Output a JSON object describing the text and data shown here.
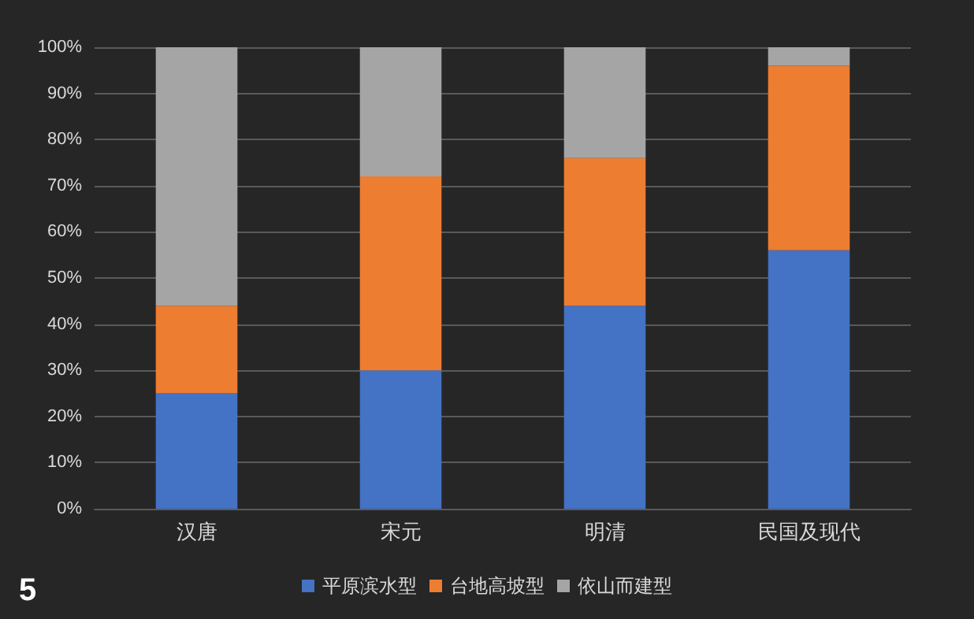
{
  "chart_data": {
    "type": "bar",
    "stacked": true,
    "categories": [
      "汉唐",
      "宋元",
      "明清",
      "民国及现代"
    ],
    "series": [
      {
        "name": "平原滨水型",
        "color": "#4472c4",
        "values": [
          25,
          30,
          44,
          56
        ]
      },
      {
        "name": "台地高坡型",
        "color": "#ed7d31",
        "values": [
          19,
          42,
          32,
          40
        ]
      },
      {
        "name": "依山而建型",
        "color": "#a5a5a5",
        "values": [
          56,
          28,
          24,
          4
        ]
      }
    ],
    "ylim": [
      0,
      100
    ],
    "yticks": [
      {
        "value": 0,
        "label": "0%"
      },
      {
        "value": 10,
        "label": "10%"
      },
      {
        "value": 20,
        "label": "20%"
      },
      {
        "value": 30,
        "label": "30%"
      },
      {
        "value": 40,
        "label": "40%"
      },
      {
        "value": 50,
        "label": "50%"
      },
      {
        "value": 60,
        "label": "60%"
      },
      {
        "value": 70,
        "label": "70%"
      },
      {
        "value": 80,
        "label": "80%"
      },
      {
        "value": 90,
        "label": "90%"
      },
      {
        "value": 100,
        "label": "100%"
      }
    ],
    "grid": "y",
    "legend": "bottom",
    "annotations": [
      "5"
    ]
  }
}
